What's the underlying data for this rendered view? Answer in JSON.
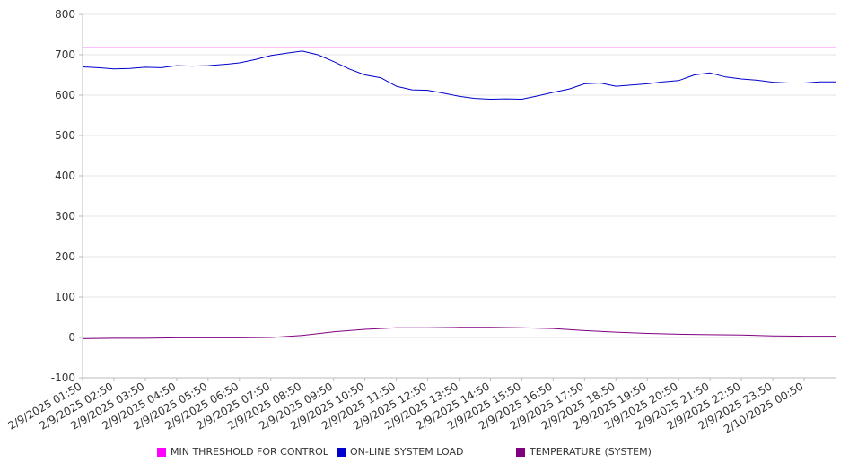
{
  "chart_data": {
    "type": "line",
    "title": "",
    "xlabel": "",
    "ylabel": "",
    "ylim": [
      -100,
      800
    ],
    "yticks": [
      -100,
      0,
      100,
      200,
      300,
      400,
      500,
      600,
      700,
      800
    ],
    "grid": "horizontal",
    "legend_position": "bottom",
    "x_tick_labels": [
      "2/9/2025 01:50",
      "2/9/2025 02:50",
      "2/9/2025 03:50",
      "2/9/2025 04:50",
      "2/9/2025 05:50",
      "2/9/2025 06:50",
      "2/9/2025 07:50",
      "2/9/2025 08:50",
      "2/9/2025 09:50",
      "2/9/2025 10:50",
      "2/9/2025 11:50",
      "2/9/2025 12:50",
      "2/9/2025 13:50",
      "2/9/2025 14:50",
      "2/9/2025 15:50",
      "2/9/2025 16:50",
      "2/9/2025 17:50",
      "2/9/2025 18:50",
      "2/9/2025 19:50",
      "2/9/2025 20:50",
      "2/9/2025 21:50",
      "2/9/2025 22:50",
      "2/9/2025 23:50",
      "2/10/2025 00:50"
    ],
    "series": [
      {
        "name": "MIN THRESHOLD FOR CONTROL",
        "color": "#ff00ff",
        "x": [
          "2/9/2025 01:50",
          "2/10/2025 01:50"
        ],
        "y": [
          717,
          717
        ]
      },
      {
        "name": "ON-LINE SYSTEM LOAD",
        "color": "#0000cc",
        "x": [
          "2/9/2025 01:50",
          "2/9/2025 02:20",
          "2/9/2025 02:50",
          "2/9/2025 03:20",
          "2/9/2025 03:50",
          "2/9/2025 04:20",
          "2/9/2025 04:50",
          "2/9/2025 05:20",
          "2/9/2025 05:50",
          "2/9/2025 06:20",
          "2/9/2025 06:50",
          "2/9/2025 07:20",
          "2/9/2025 07:50",
          "2/9/2025 08:20",
          "2/9/2025 08:50",
          "2/9/2025 09:20",
          "2/9/2025 09:50",
          "2/9/2025 10:20",
          "2/9/2025 10:50",
          "2/9/2025 11:20",
          "2/9/2025 11:50",
          "2/9/2025 12:20",
          "2/9/2025 12:50",
          "2/9/2025 13:20",
          "2/9/2025 13:50",
          "2/9/2025 14:20",
          "2/9/2025 14:50",
          "2/9/2025 15:20",
          "2/9/2025 15:50",
          "2/9/2025 16:20",
          "2/9/2025 16:50",
          "2/9/2025 17:20",
          "2/9/2025 17:50",
          "2/9/2025 18:20",
          "2/9/2025 18:50",
          "2/9/2025 19:20",
          "2/9/2025 19:50",
          "2/9/2025 20:20",
          "2/9/2025 20:50",
          "2/9/2025 21:20",
          "2/9/2025 21:50",
          "2/9/2025 22:20",
          "2/9/2025 22:50",
          "2/9/2025 23:20",
          "2/9/2025 23:50",
          "2/10/2025 00:20",
          "2/10/2025 00:50",
          "2/10/2025 01:20",
          "2/10/2025 01:50"
        ],
        "y": [
          670,
          668,
          665,
          666,
          669,
          668,
          673,
          672,
          673,
          676,
          680,
          688,
          698,
          704,
          709,
          700,
          683,
          665,
          650,
          643,
          622,
          613,
          612,
          605,
          597,
          592,
          590,
          591,
          590,
          598,
          607,
          615,
          628,
          630,
          622,
          625,
          628,
          633,
          636,
          650,
          655,
          645,
          640,
          637,
          632,
          630,
          630,
          633,
          633
        ]
      },
      {
        "name": "TEMPERATURE (SYSTEM)",
        "color": "#800080",
        "x": [
          "2/9/2025 01:50",
          "2/9/2025 02:50",
          "2/9/2025 03:50",
          "2/9/2025 04:50",
          "2/9/2025 05:50",
          "2/9/2025 06:50",
          "2/9/2025 07:50",
          "2/9/2025 08:50",
          "2/9/2025 09:50",
          "2/9/2025 10:50",
          "2/9/2025 11:50",
          "2/9/2025 12:50",
          "2/9/2025 13:50",
          "2/9/2025 14:50",
          "2/9/2025 15:50",
          "2/9/2025 16:50",
          "2/9/2025 17:50",
          "2/9/2025 18:50",
          "2/9/2025 19:50",
          "2/9/2025 20:50",
          "2/9/2025 21:50",
          "2/9/2025 22:50",
          "2/9/2025 23:50",
          "2/10/2025 00:50",
          "2/10/2025 01:50"
        ],
        "y": [
          -3,
          -2,
          -2,
          -1,
          -1,
          -1,
          0,
          5,
          14,
          20,
          24,
          24,
          25,
          25,
          24,
          22,
          17,
          13,
          10,
          8,
          7,
          6,
          4,
          3,
          3
        ]
      }
    ]
  }
}
